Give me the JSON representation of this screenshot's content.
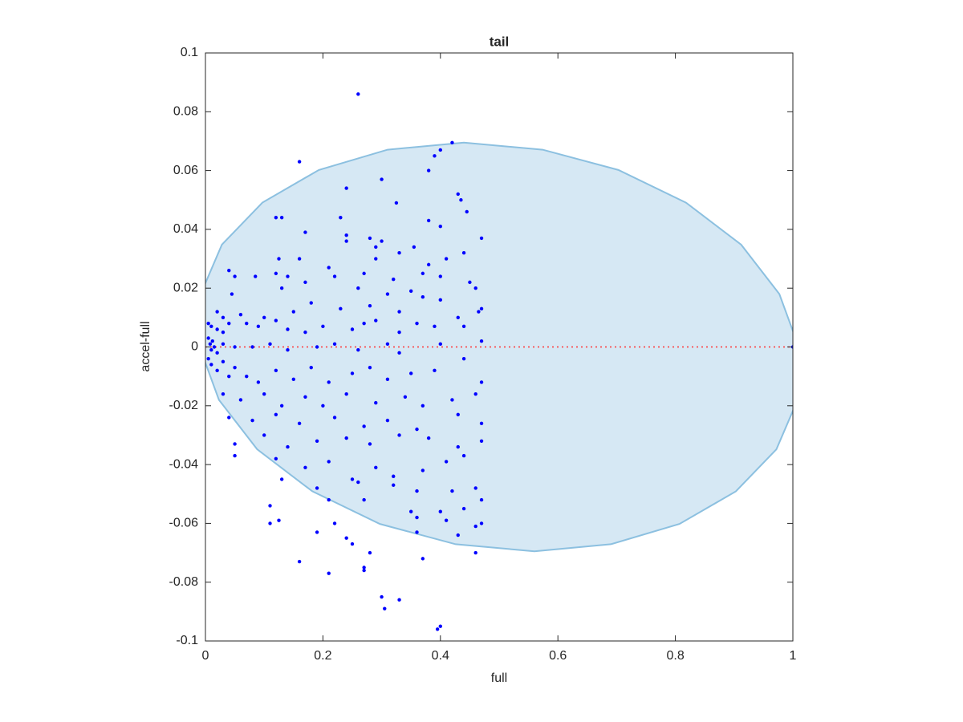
{
  "chart_data": {
    "type": "scatter",
    "title": "tail",
    "xlabel": "full",
    "ylabel": "accel-full",
    "xlim": [
      0,
      1
    ],
    "ylim": [
      -0.1,
      0.1
    ],
    "xticks": [
      0,
      0.2,
      0.4,
      0.6,
      0.8,
      1
    ],
    "yticks": [
      -0.1,
      -0.08,
      -0.06,
      -0.04,
      -0.02,
      0,
      0.02,
      0.04,
      0.06,
      0.08,
      0.1
    ],
    "series": [
      {
        "type": "area",
        "color": "#d6e8f4",
        "edgecolor": "#8cc0e0",
        "x": [
          1.01,
          0.977,
          0.912,
          0.818,
          0.703,
          0.574,
          0.44,
          0.31,
          0.193,
          0.097,
          0.028,
          -0.008,
          -0.01,
          0.023,
          0.088,
          0.182,
          0.297,
          0.426,
          0.56,
          0.69,
          0.807,
          0.903,
          0.972,
          1.008
        ],
        "values": [
          0,
          0.018,
          0.0348,
          0.0491,
          0.0602,
          0.0671,
          0.0695,
          0.0671,
          0.0602,
          0.0491,
          0.0348,
          0.018,
          0,
          -0.018,
          -0.0348,
          -0.0491,
          -0.0602,
          -0.0671,
          -0.0695,
          -0.0671,
          -0.0602,
          -0.0491,
          -0.0348,
          -0.018
        ]
      },
      {
        "type": "line",
        "color": "#ff3333",
        "style": "dotted",
        "x": [
          0,
          1
        ],
        "values": [
          0,
          0
        ]
      },
      {
        "type": "scatter",
        "color": "#0000ff",
        "x": [
          0.26,
          0.42,
          0.4,
          0.39,
          0.38,
          0.16,
          0.3,
          0.24,
          0.325,
          0.43,
          0.435,
          0.445,
          0.12,
          0.13,
          0.23,
          0.38,
          0.4,
          0.17,
          0.24,
          0.28,
          0.3,
          0.47,
          0.355,
          0.29,
          0.24,
          0.125,
          0.16,
          0.12,
          0.21,
          0.29,
          0.33,
          0.38,
          0.41,
          0.44,
          0.04,
          0.05,
          0.085,
          0.14,
          0.22,
          0.27,
          0.32,
          0.37,
          0.45,
          0.4,
          0.045,
          0.13,
          0.17,
          0.26,
          0.31,
          0.35,
          0.46,
          0.47,
          0.465,
          0.02,
          0.03,
          0.06,
          0.1,
          0.15,
          0.18,
          0.23,
          0.28,
          0.33,
          0.37,
          0.4,
          0.43,
          0.44,
          0.005,
          0.01,
          0.02,
          0.03,
          0.04,
          0.07,
          0.09,
          0.12,
          0.14,
          0.17,
          0.2,
          0.25,
          0.27,
          0.29,
          0.33,
          0.36,
          0.39,
          0.47,
          0.005,
          0.008,
          0.01,
          0.012,
          0.015,
          0.02,
          0.03,
          0.05,
          0.08,
          0.11,
          0.14,
          0.19,
          0.22,
          0.26,
          0.31,
          0.33,
          0.4,
          0.005,
          0.01,
          0.02,
          0.03,
          0.04,
          0.05,
          0.07,
          0.09,
          0.12,
          0.15,
          0.18,
          0.21,
          0.25,
          0.28,
          0.31,
          0.35,
          0.39,
          0.44,
          0.47,
          0.03,
          0.06,
          0.1,
          0.13,
          0.17,
          0.2,
          0.24,
          0.29,
          0.34,
          0.37,
          0.42,
          0.46,
          0.04,
          0.08,
          0.12,
          0.16,
          0.22,
          0.27,
          0.31,
          0.36,
          0.43,
          0.47,
          0.05,
          0.1,
          0.14,
          0.19,
          0.24,
          0.28,
          0.33,
          0.38,
          0.43,
          0.47,
          0.05,
          0.12,
          0.17,
          0.21,
          0.25,
          0.29,
          0.32,
          0.37,
          0.41,
          0.44,
          0.13,
          0.19,
          0.26,
          0.32,
          0.36,
          0.42,
          0.46,
          0.47,
          0.11,
          0.21,
          0.27,
          0.35,
          0.4,
          0.44,
          0.11,
          0.125,
          0.22,
          0.19,
          0.36,
          0.41,
          0.46,
          0.47,
          0.24,
          0.25,
          0.36,
          0.43,
          0.46,
          0.28,
          0.27,
          0.27,
          0.16,
          0.21,
          0.37,
          0.3,
          0.33,
          0.305,
          0.4,
          0.395,
          1
        ],
        "values": [
          0.086,
          0.0695,
          0.067,
          0.065,
          0.06,
          0.063,
          0.057,
          0.054,
          0.049,
          0.052,
          0.05,
          0.046,
          0.044,
          0.044,
          0.044,
          0.043,
          0.041,
          0.039,
          0.038,
          0.037,
          0.036,
          0.037,
          0.034,
          0.034,
          0.036,
          0.03,
          0.03,
          0.025,
          0.027,
          0.03,
          0.032,
          0.028,
          0.03,
          0.032,
          0.026,
          0.024,
          0.024,
          0.024,
          0.024,
          0.025,
          0.023,
          0.025,
          0.022,
          0.024,
          0.018,
          0.02,
          0.022,
          0.02,
          0.018,
          0.019,
          0.02,
          0.013,
          0.012,
          0.012,
          0.01,
          0.011,
          0.01,
          0.012,
          0.015,
          0.013,
          0.014,
          0.012,
          0.017,
          0.016,
          0.01,
          0.007,
          0.008,
          0.007,
          0.006,
          0.005,
          0.008,
          0.008,
          0.007,
          0.009,
          0.006,
          0.005,
          0.007,
          0.006,
          0.008,
          0.009,
          0.005,
          0.008,
          0.007,
          0.002,
          0.003,
          0.001,
          -0.001,
          0.002,
          0,
          -0.002,
          0.001,
          0,
          0,
          0.001,
          -0.001,
          0,
          0.001,
          -0.001,
          0.001,
          -0.002,
          0.001,
          -0.004,
          -0.006,
          -0.008,
          -0.005,
          -0.01,
          -0.007,
          -0.01,
          -0.012,
          -0.008,
          -0.011,
          -0.007,
          -0.012,
          -0.009,
          -0.007,
          -0.011,
          -0.009,
          -0.008,
          -0.004,
          -0.012,
          -0.016,
          -0.018,
          -0.016,
          -0.02,
          -0.017,
          -0.02,
          -0.016,
          -0.019,
          -0.017,
          -0.02,
          -0.018,
          -0.016,
          -0.024,
          -0.025,
          -0.023,
          -0.026,
          -0.024,
          -0.027,
          -0.025,
          -0.028,
          -0.023,
          -0.026,
          -0.033,
          -0.03,
          -0.034,
          -0.032,
          -0.031,
          -0.033,
          -0.03,
          -0.031,
          -0.034,
          -0.032,
          -0.037,
          -0.038,
          -0.041,
          -0.039,
          -0.045,
          -0.041,
          -0.044,
          -0.042,
          -0.039,
          -0.037,
          -0.045,
          -0.048,
          -0.046,
          -0.047,
          -0.049,
          -0.049,
          -0.048,
          -0.052,
          -0.054,
          -0.052,
          -0.052,
          -0.056,
          -0.056,
          -0.055,
          -0.06,
          -0.059,
          -0.06,
          -0.063,
          -0.058,
          -0.059,
          -0.061,
          -0.06,
          -0.065,
          -0.067,
          -0.063,
          -0.064,
          -0.07,
          -0.07,
          -0.075,
          -0.076,
          -0.073,
          -0.077,
          -0.072,
          -0.085,
          -0.086,
          -0.089,
          -0.095,
          -0.096,
          0
        ]
      }
    ]
  }
}
